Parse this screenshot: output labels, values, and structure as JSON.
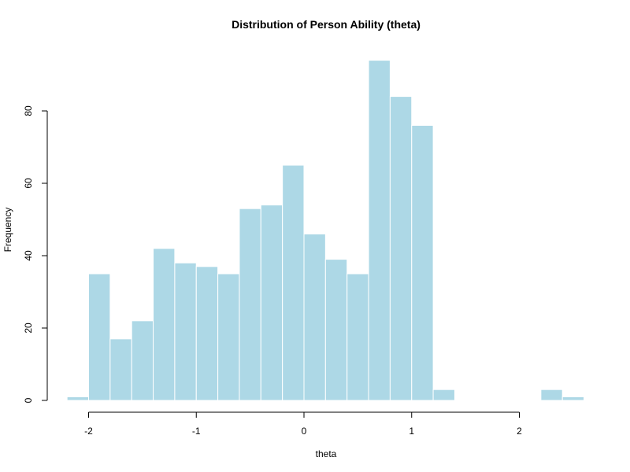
{
  "chart_data": {
    "type": "bar",
    "title": "Distribution of Person Ability (theta)",
    "xlabel": "theta",
    "ylabel": "Frequency",
    "bin_width": 0.2,
    "bins": [
      {
        "start": -2.2,
        "end": -2.0,
        "value": 1
      },
      {
        "start": -2.0,
        "end": -1.8,
        "value": 35
      },
      {
        "start": -1.8,
        "end": -1.6,
        "value": 17
      },
      {
        "start": -1.6,
        "end": -1.4,
        "value": 22
      },
      {
        "start": -1.4,
        "end": -1.2,
        "value": 42
      },
      {
        "start": -1.2,
        "end": -1.0,
        "value": 38
      },
      {
        "start": -1.0,
        "end": -0.8,
        "value": 37
      },
      {
        "start": -0.8,
        "end": -0.6,
        "value": 35
      },
      {
        "start": -0.6,
        "end": -0.4,
        "value": 53
      },
      {
        "start": -0.4,
        "end": -0.2,
        "value": 54
      },
      {
        "start": -0.2,
        "end": 0.0,
        "value": 65
      },
      {
        "start": 0.0,
        "end": 0.2,
        "value": 46
      },
      {
        "start": 0.2,
        "end": 0.4,
        "value": 39
      },
      {
        "start": 0.4,
        "end": 0.6,
        "value": 35
      },
      {
        "start": 0.6,
        "end": 0.8,
        "value": 94
      },
      {
        "start": 0.8,
        "end": 1.0,
        "value": 84
      },
      {
        "start": 1.0,
        "end": 1.2,
        "value": 76
      },
      {
        "start": 1.2,
        "end": 1.4,
        "value": 3
      },
      {
        "start": 2.2,
        "end": 2.4,
        "value": 3
      },
      {
        "start": 2.4,
        "end": 2.6,
        "value": 1
      }
    ],
    "xlim": [
      -2.2,
      2.6
    ],
    "ylim": [
      0,
      94
    ],
    "x_ticks": [
      -2,
      -1,
      0,
      1,
      2
    ],
    "x_tick_labels": [
      "-2",
      "-1",
      "0",
      "1",
      "2"
    ],
    "y_ticks": [
      0,
      20,
      40,
      60,
      80
    ],
    "y_tick_labels": [
      "0",
      "20",
      "40",
      "60",
      "80"
    ],
    "bar_color": "#add8e6",
    "bar_border_color": "#ffffff",
    "axis_color": "#000000",
    "grid": false,
    "legend": false
  }
}
